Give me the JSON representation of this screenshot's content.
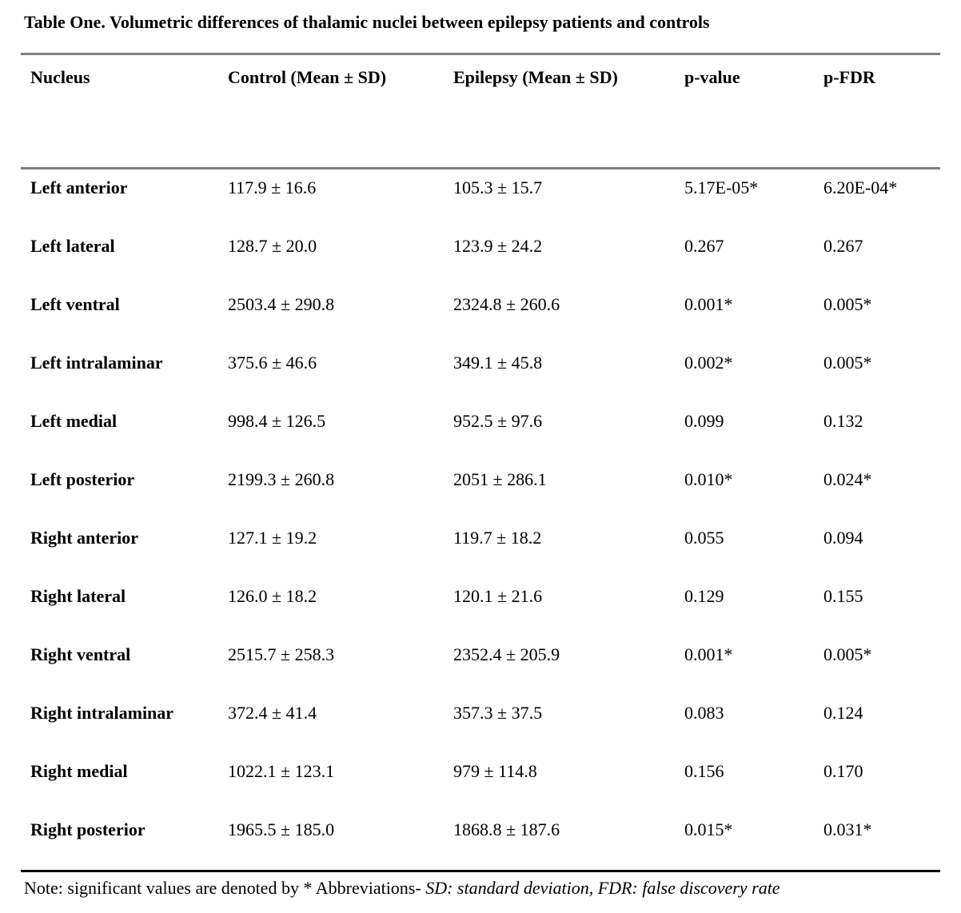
{
  "page": {
    "title": "Table One. Volumetric differences of thalamic nuclei between epilepsy patients and controls"
  },
  "table": {
    "headers": {
      "nucleus": "Nucleus",
      "control": "Control (Mean ± SD)",
      "epilepsy": "Epilepsy (Mean ± SD)",
      "p_value": "p-value",
      "p_fdr": "p-FDR"
    },
    "rows": [
      {
        "nucleus": "Left anterior",
        "control": "117.9 ± 16.6",
        "epilepsy": "105.3 ± 15.7",
        "p_value": "5.17E-05*",
        "p_fdr": "6.20E-04*"
      },
      {
        "nucleus": "Left lateral",
        "control": "128.7 ± 20.0",
        "epilepsy": "123.9 ± 24.2",
        "p_value": "0.267",
        "p_fdr": "0.267"
      },
      {
        "nucleus": "Left ventral",
        "control": "2503.4 ± 290.8",
        "epilepsy": "2324.8 ± 260.6",
        "p_value": "0.001*",
        "p_fdr": "0.005*"
      },
      {
        "nucleus": "Left intralaminar",
        "control": "375.6 ± 46.6",
        "epilepsy": "349.1 ± 45.8",
        "p_value": "0.002*",
        "p_fdr": "0.005*"
      },
      {
        "nucleus": "Left medial",
        "control": "998.4 ± 126.5",
        "epilepsy": "952.5 ± 97.6",
        "p_value": "0.099",
        "p_fdr": "0.132"
      },
      {
        "nucleus": "Left posterior",
        "control": "2199.3 ± 260.8",
        "epilepsy": "2051 ± 286.1",
        "p_value": "0.010*",
        "p_fdr": "0.024*"
      },
      {
        "nucleus": "Right anterior",
        "control": "127.1 ± 19.2",
        "epilepsy": "119.7 ± 18.2",
        "p_value": "0.055",
        "p_fdr": "0.094"
      },
      {
        "nucleus": "Right lateral",
        "control": "126.0 ± 18.2",
        "epilepsy": "120.1 ± 21.6",
        "p_value": "0.129",
        "p_fdr": "0.155"
      },
      {
        "nucleus": "Right ventral",
        "control": "2515.7 ± 258.3",
        "epilepsy": "2352.4 ± 205.9",
        "p_value": "0.001*",
        "p_fdr": "0.005*"
      },
      {
        "nucleus": "Right intralaminar",
        "control": "372.4 ± 41.4",
        "epilepsy": "357.3 ± 37.5",
        "p_value": "0.083",
        "p_fdr": "0.124"
      },
      {
        "nucleus": "Right medial",
        "control": "1022.1 ± 123.1",
        "epilepsy": "979 ± 114.8",
        "p_value": "0.156",
        "p_fdr": "0.170"
      },
      {
        "nucleus": "Right posterior",
        "control": "1965.5 ± 185.0",
        "epilepsy": "1868.8 ± 187.6",
        "p_value": "0.015*",
        "p_fdr": "0.031*"
      }
    ]
  },
  "footnote": {
    "regular": "Note: significant values are denoted by * Abbreviations- ",
    "italic": "SD: standard deviation, FDR: false discovery rate"
  },
  "colors": {
    "rule_gray": "#808080",
    "rule_black": "#000000",
    "text": "#000000",
    "background": "#ffffff"
  }
}
